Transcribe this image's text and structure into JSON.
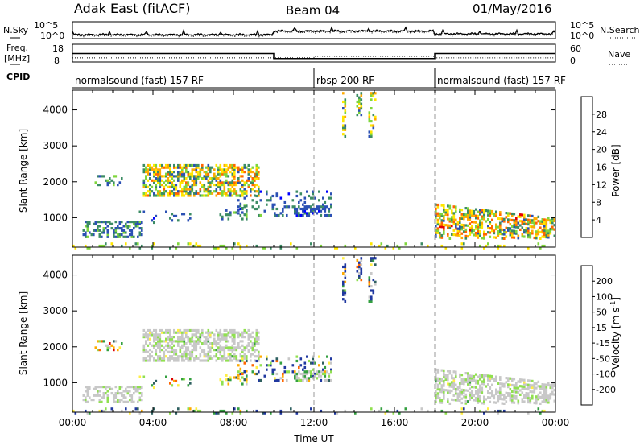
{
  "header": {
    "station": "Adak East (fitACF)",
    "beam": "Beam 04",
    "date": "01/May/2016"
  },
  "left_labels": {
    "nsky": "N.Sky",
    "freq_line1": "Freq.",
    "freq_line2": "[MHz]",
    "cpid": "CPID"
  },
  "right_labels": {
    "nsearch": "N.Search",
    "nave": "Nave"
  },
  "cpid_segments": [
    {
      "label": "normalsound (fast) 157 RF",
      "start": 0,
      "end": 12
    },
    {
      "label": "rbsp 200 RF",
      "start": 12,
      "end": 18
    },
    {
      "label": "normalsound (fast) 157 RF",
      "start": 18,
      "end": 24
    }
  ],
  "colors": {
    "power_scale": [
      "#0000ff",
      "#2b50b4",
      "#3c8c64",
      "#7fd63c",
      "#ffe600",
      "#ffaa00",
      "#ff6600",
      "#e60000"
    ],
    "velocity_scale": [
      "#2038a0",
      "#2f6060",
      "#34a040",
      "#90e050",
      "#c8c8c8",
      "#ffee44",
      "#ffaa00",
      "#ff6600",
      "#dd0000"
    ]
  },
  "chart_data": [
    {
      "type": "line",
      "name": "noise-panel",
      "left_ticks": [
        "10^5",
        "10^0"
      ],
      "right_ticks": [
        "10^5",
        "10^0"
      ]
    },
    {
      "type": "line",
      "name": "freq-panel",
      "left_ticks": [
        "18",
        "8"
      ],
      "right_ticks": [
        "60",
        "0"
      ],
      "freq_series": [
        {
          "x": 0,
          "y": 13.5
        },
        {
          "x": 10,
          "y": 13.5
        },
        {
          "x": 10,
          "y": 10.2
        },
        {
          "x": 18,
          "y": 10.2
        },
        {
          "x": 18,
          "y": 13.5
        },
        {
          "x": 24,
          "y": 13.5
        }
      ],
      "nave_series": [
        {
          "x": 0,
          "y": 16
        },
        {
          "x": 12,
          "y": 16
        },
        {
          "x": 12,
          "y": 22
        },
        {
          "x": 18,
          "y": 22
        },
        {
          "x": 18,
          "y": 16
        },
        {
          "x": 24,
          "y": 16
        }
      ]
    },
    {
      "type": "heatmap",
      "name": "power",
      "ylabel": "Slant Range [km]",
      "ylim": [
        180,
        4550
      ],
      "xlim": [
        0,
        24
      ],
      "y_ticks": [
        1000,
        2000,
        3000,
        4000
      ],
      "colorbar_label": "Power [dB]",
      "colorbar_ticks": [
        "4",
        "8",
        "12",
        "16",
        "20",
        "24",
        "28"
      ],
      "mode_boundaries": [
        12,
        18
      ]
    },
    {
      "type": "heatmap",
      "name": "velocity",
      "ylabel": "Slant Range [km]",
      "ylim": [
        180,
        4550
      ],
      "xlim": [
        0,
        24
      ],
      "y_ticks": [
        1000,
        2000,
        3000,
        4000
      ],
      "xlabel": "Time UT",
      "x_ticks": [
        "00:00",
        "04:00",
        "08:00",
        "12:00",
        "16:00",
        "20:00",
        "00:00"
      ],
      "colorbar_label_main": "Velocity [m s",
      "colorbar_label_sup": "-1",
      "colorbar_label_end": "]",
      "colorbar_ticks": [
        "200",
        "100",
        "50",
        "15",
        "-15",
        "-50",
        "-100",
        "-200"
      ],
      "mode_boundaries": [
        12,
        18
      ]
    }
  ]
}
